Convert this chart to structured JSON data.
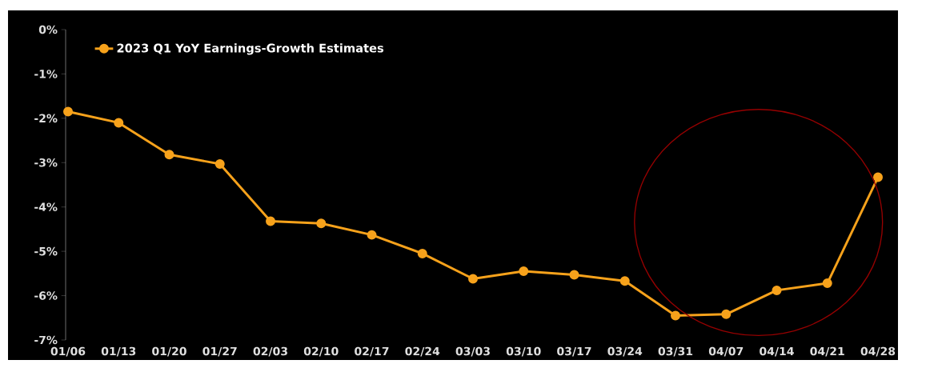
{
  "chart_data": {
    "type": "line",
    "categories": [
      "01/06",
      "01/13",
      "01/20",
      "01/27",
      "02/03",
      "02/10",
      "02/17",
      "02/24",
      "03/03",
      "03/10",
      "03/17",
      "03/24",
      "03/31",
      "04/07",
      "04/14",
      "04/21",
      "04/28"
    ],
    "series": [
      {
        "name": "2023 Q1 YoY Earnings-Growth Estimates",
        "color": "#f7a21b",
        "values": [
          -1.85,
          -2.1,
          -2.82,
          -3.03,
          -4.32,
          -4.37,
          -4.63,
          -5.05,
          -5.62,
          -5.45,
          -5.53,
          -5.67,
          -6.45,
          -6.42,
          -5.88,
          -5.72,
          -3.33
        ]
      }
    ],
    "ylim": [
      -7,
      0
    ],
    "yticks": [
      {
        "value": -7,
        "label": "-7%"
      },
      {
        "value": -6,
        "label": "-6%"
      },
      {
        "value": -5,
        "label": "-5%"
      },
      {
        "value": -4,
        "label": "-4%"
      },
      {
        "value": -3,
        "label": "-3%"
      },
      {
        "value": -2,
        "label": "-2%"
      },
      {
        "value": -1,
        "label": "-1%"
      },
      {
        "value": 0,
        "label": "0%"
      }
    ],
    "grid": false,
    "legend": "top left",
    "marker": "circle",
    "line_style": "solid"
  }
}
